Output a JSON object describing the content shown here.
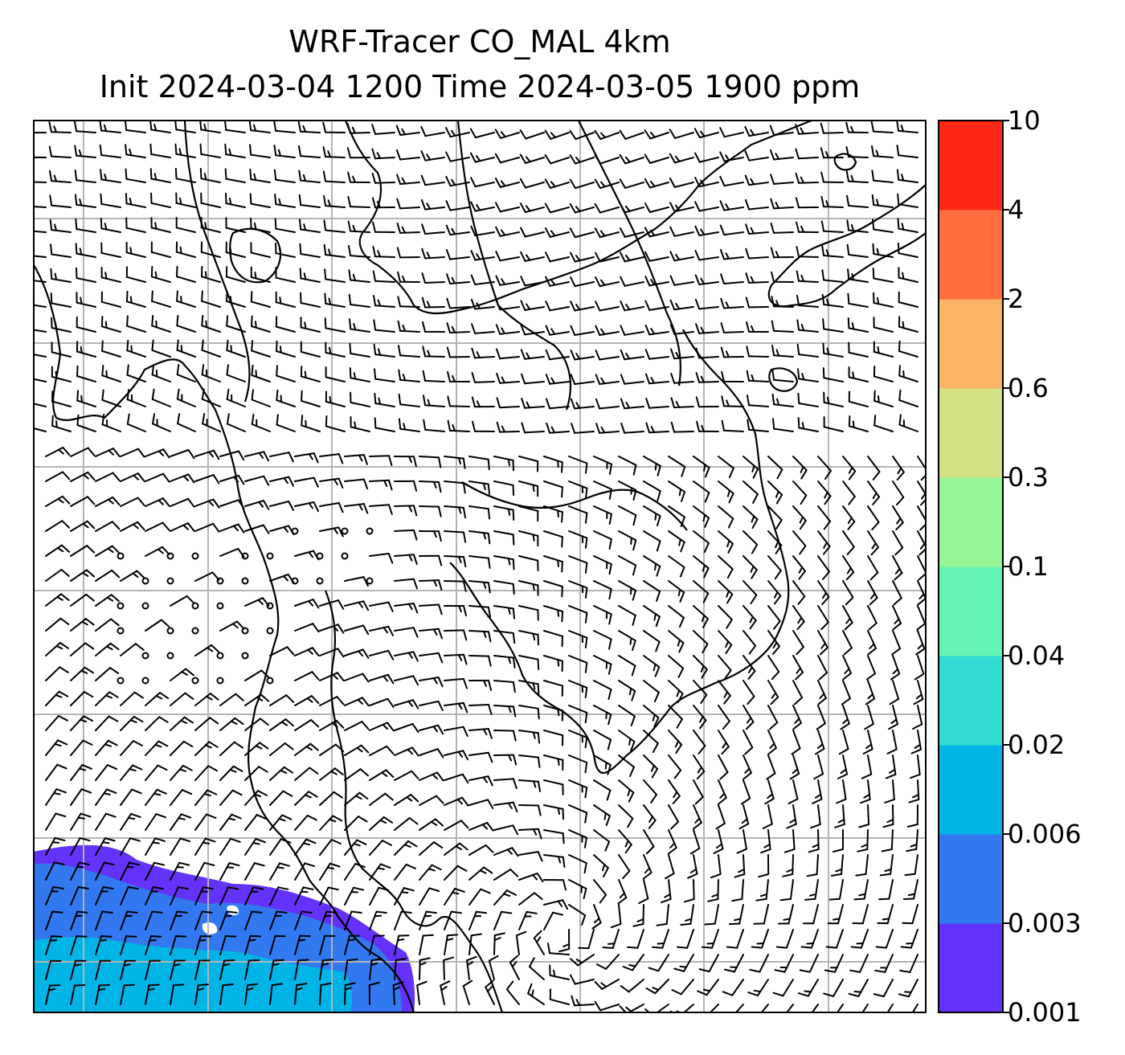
{
  "title": {
    "line1": "WRF-Tracer CO_MAL 4km",
    "line2": "Init 2024-03-04 1200 Time 2024-03-05 1900 ppm"
  },
  "colorbar": {
    "levels": [
      "0.001",
      "0.003",
      "0.006",
      "0.02",
      "0.04",
      "0.1",
      "0.3",
      "0.6",
      "2",
      "4",
      "10"
    ],
    "colors": [
      "#6432fa",
      "#3278f0",
      "#00b4e6",
      "#32dcd2",
      "#64f5b4",
      "#96f596",
      "#d2e182",
      "#fab464",
      "#ff6e3c",
      "#ff2814"
    ]
  },
  "map": {
    "background": "#ffffff",
    "gridline_color": "#b4b4b4",
    "coastline_color": "#000000",
    "barb_color": "#000000",
    "tracer_fill_levels": [
      "0.001",
      "0.003",
      "0.006"
    ]
  }
}
